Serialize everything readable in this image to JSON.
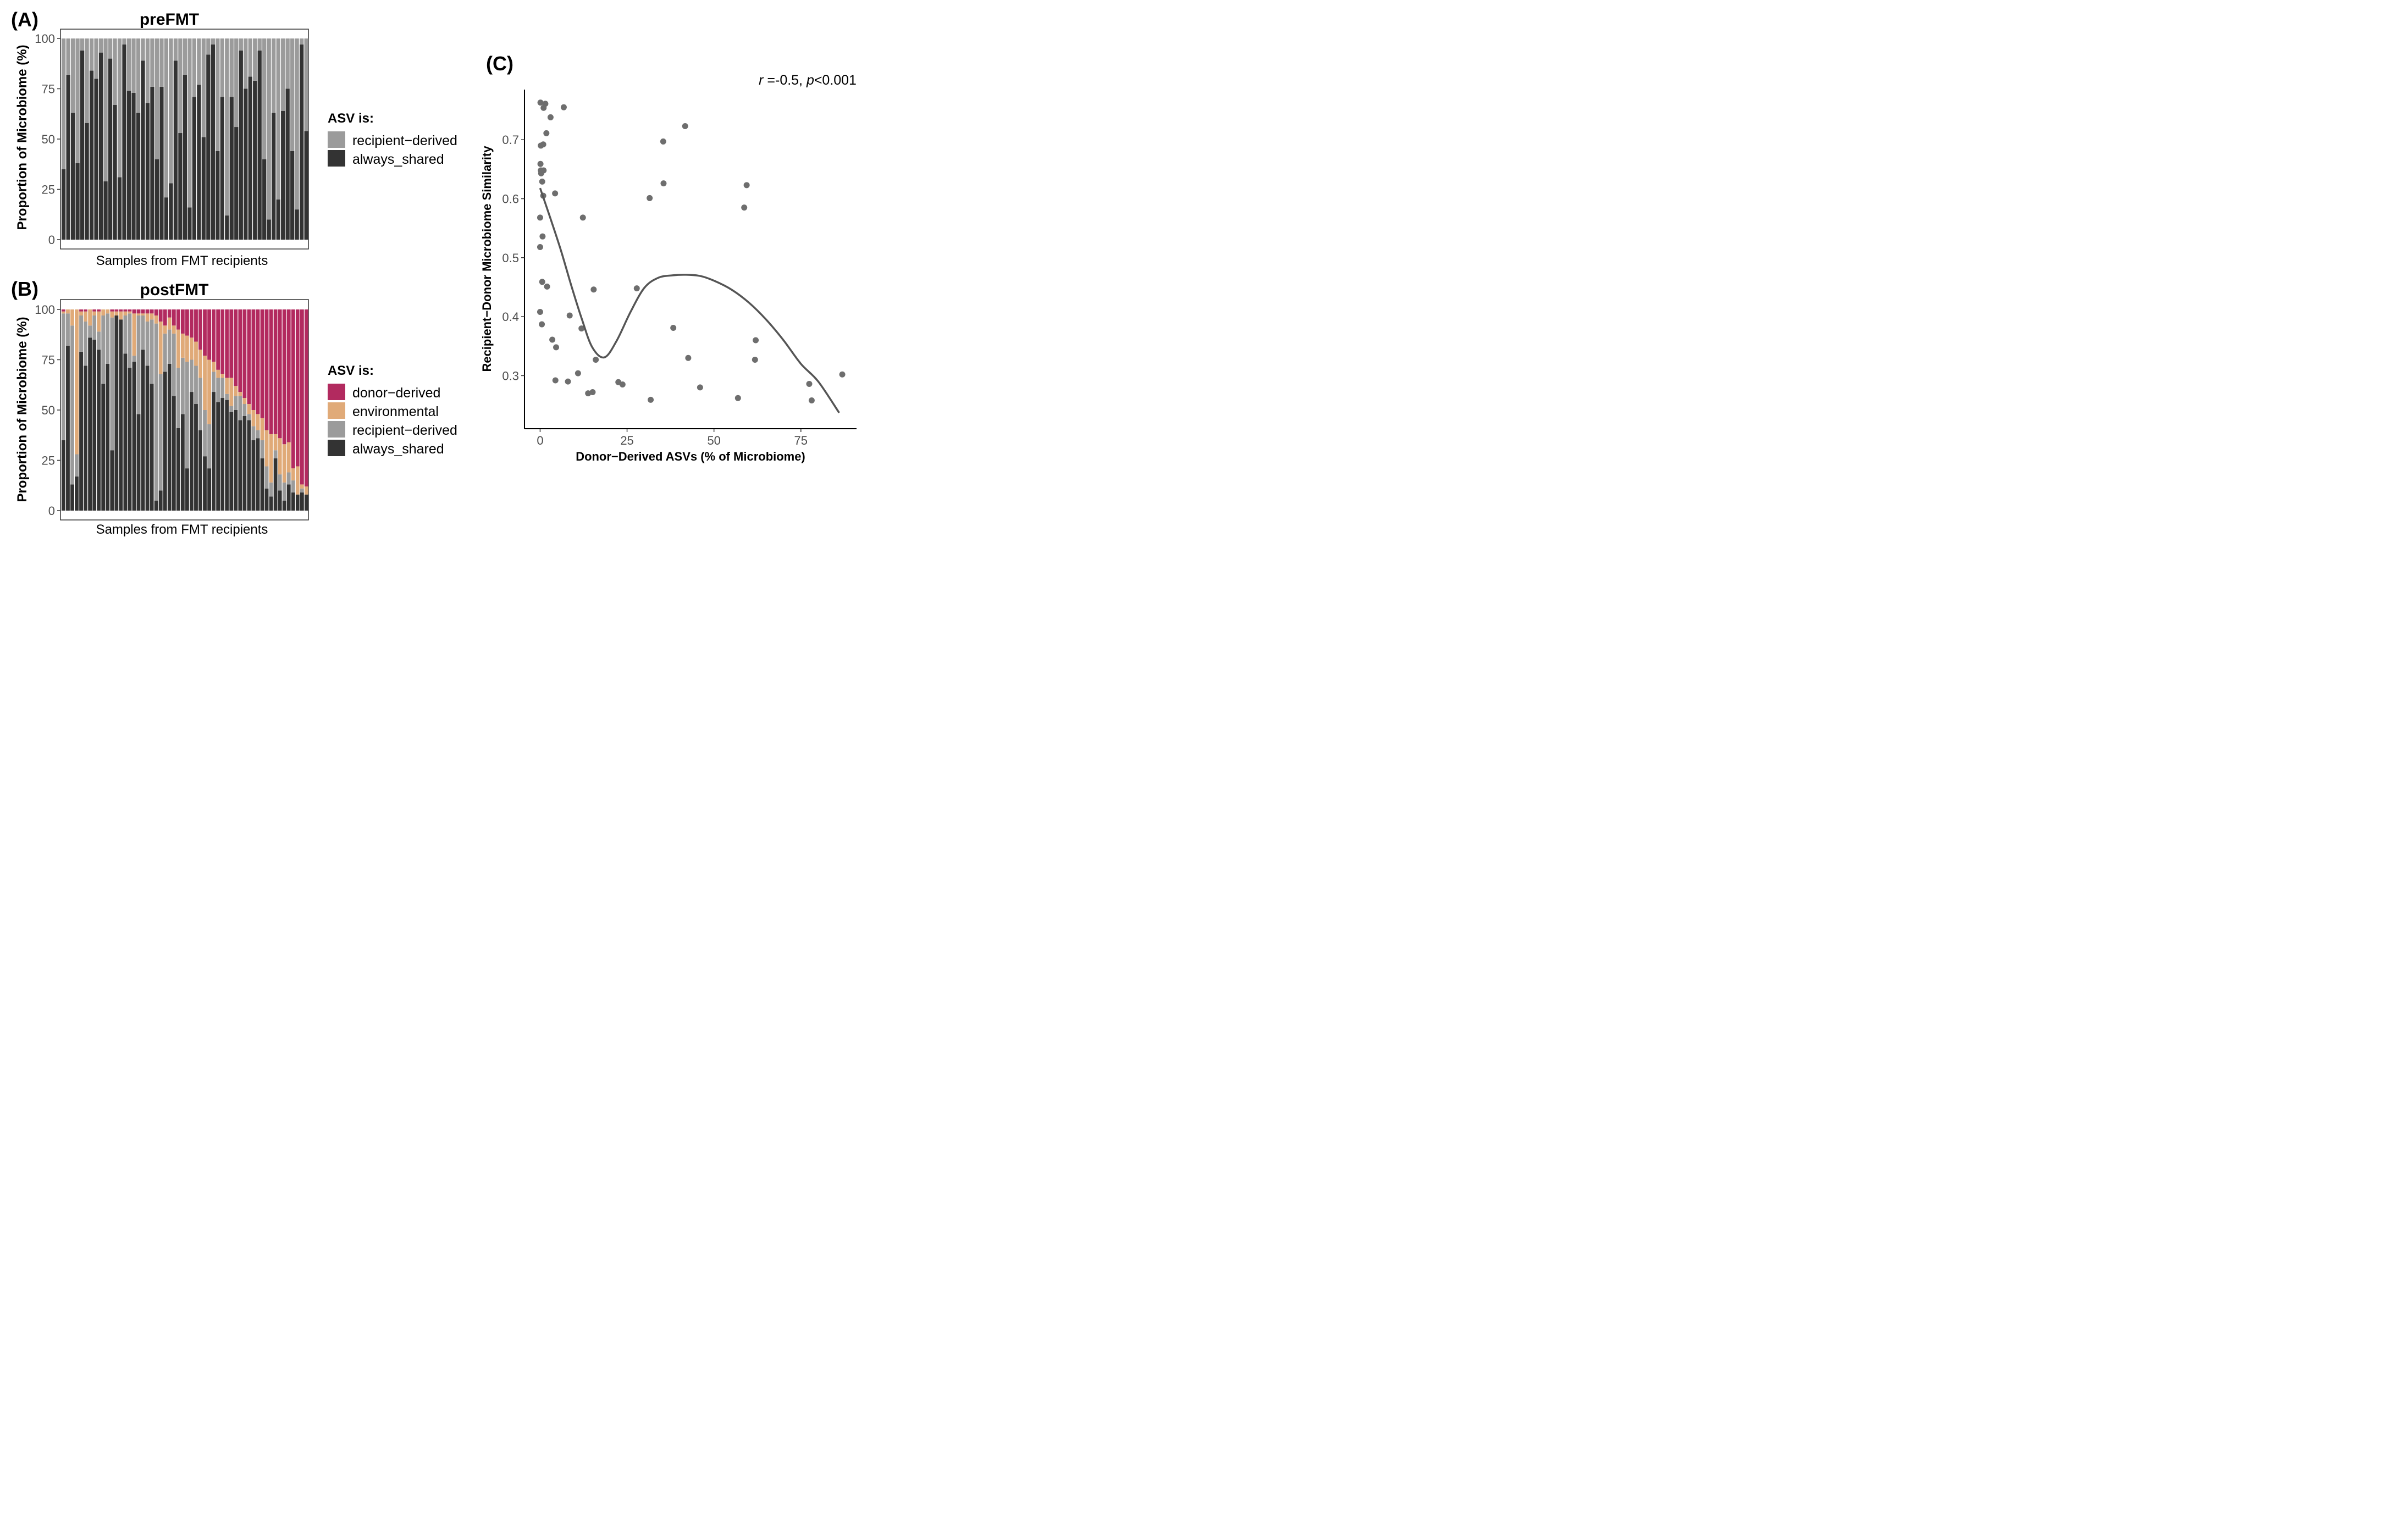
{
  "colors": {
    "donor": "#b22a5f",
    "environmental": "#e0aa78",
    "recipient": "#9b9b9b",
    "shared": "#333333",
    "point": "#6e6e6e",
    "curve": "#555555"
  },
  "chart_data": [
    {
      "panel": "(A)",
      "type": "bar",
      "stacked": true,
      "title": "preFMT",
      "xlabel": "Samples from FMT recipients",
      "ylabel": "Proportion of Microbiome (%)",
      "ylim": [
        0,
        100
      ],
      "yticks": [
        "0",
        "25",
        "50",
        "75",
        "100"
      ],
      "legend_title": "ASV is:",
      "legend_position": "right",
      "legend": [
        {
          "label": "recipient−derived",
          "key": "recipient"
        },
        {
          "label": "always_shared",
          "key": "shared"
        }
      ],
      "series_order": [
        "shared",
        "recipient"
      ],
      "samples": [
        {
          "shared": 35
        },
        {
          "shared": 82
        },
        {
          "shared": 63
        },
        {
          "shared": 38
        },
        {
          "shared": 94
        },
        {
          "shared": 58
        },
        {
          "shared": 84
        },
        {
          "shared": 80
        },
        {
          "shared": 93
        },
        {
          "shared": 29
        },
        {
          "shared": 90
        },
        {
          "shared": 67
        },
        {
          "shared": 31
        },
        {
          "shared": 97
        },
        {
          "shared": 74
        },
        {
          "shared": 73
        },
        {
          "shared": 63
        },
        {
          "shared": 89
        },
        {
          "shared": 68
        },
        {
          "shared": 76
        },
        {
          "shared": 40
        },
        {
          "shared": 76
        },
        {
          "shared": 21
        },
        {
          "shared": 28
        },
        {
          "shared": 89
        },
        {
          "shared": 53
        },
        {
          "shared": 82
        },
        {
          "shared": 16
        },
        {
          "shared": 71
        },
        {
          "shared": 77
        },
        {
          "shared": 51
        },
        {
          "shared": 92
        },
        {
          "shared": 97
        },
        {
          "shared": 44
        },
        {
          "shared": 71
        },
        {
          "shared": 12
        },
        {
          "shared": 71
        },
        {
          "shared": 56
        },
        {
          "shared": 94
        },
        {
          "shared": 75
        },
        {
          "shared": 81
        },
        {
          "shared": 79
        },
        {
          "shared": 94
        },
        {
          "shared": 40
        },
        {
          "shared": 10
        },
        {
          "shared": 63
        },
        {
          "shared": 20
        },
        {
          "shared": 64
        },
        {
          "shared": 75
        },
        {
          "shared": 44
        },
        {
          "shared": 15
        },
        {
          "shared": 97
        },
        {
          "shared": 54
        }
      ]
    },
    {
      "panel": "(B)",
      "type": "bar",
      "stacked": true,
      "title": "postFMT",
      "xlabel": "Samples from FMT recipients",
      "ylabel": "Proportion of Microbiome (%)",
      "ylim": [
        0,
        100
      ],
      "yticks": [
        "0",
        "25",
        "50",
        "75",
        "100"
      ],
      "legend_title": "ASV is:",
      "legend_position": "right",
      "legend": [
        {
          "label": "donor−derived",
          "key": "donor"
        },
        {
          "label": "environmental",
          "key": "environmental"
        },
        {
          "label": "recipient−derived",
          "key": "recipient"
        },
        {
          "label": "always_shared",
          "key": "shared"
        }
      ],
      "series_order": [
        "shared",
        "recipient",
        "environmental",
        "donor"
      ],
      "samples": [
        {
          "shared": 35,
          "recipient": 63,
          "environmental": 1,
          "donor": 1
        },
        {
          "shared": 82,
          "recipient": 16,
          "environmental": 2,
          "donor": 0
        },
        {
          "shared": 13,
          "recipient": 79,
          "environmental": 8,
          "donor": 0
        },
        {
          "shared": 17,
          "recipient": 11,
          "environmental": 72,
          "donor": 0
        },
        {
          "shared": 79,
          "recipient": 18,
          "environmental": 2,
          "donor": 1
        },
        {
          "shared": 72,
          "recipient": 22,
          "environmental": 5,
          "donor": 1
        },
        {
          "shared": 86,
          "recipient": 6,
          "environmental": 8,
          "donor": 0
        },
        {
          "shared": 85,
          "recipient": 12,
          "environmental": 2,
          "donor": 1
        },
        {
          "shared": 80,
          "recipient": 9,
          "environmental": 10,
          "donor": 1
        },
        {
          "shared": 63,
          "recipient": 34,
          "environmental": 3,
          "donor": 0
        },
        {
          "shared": 73,
          "recipient": 25,
          "environmental": 2,
          "donor": 0
        },
        {
          "shared": 30,
          "recipient": 66,
          "environmental": 3,
          "donor": 1
        },
        {
          "shared": 97,
          "recipient": 0,
          "environmental": 2,
          "donor": 1
        },
        {
          "shared": 95,
          "recipient": 0,
          "environmental": 4,
          "donor": 1
        },
        {
          "shared": 78,
          "recipient": 19,
          "environmental": 2,
          "donor": 1
        },
        {
          "shared": 71,
          "recipient": 27,
          "environmental": 1,
          "donor": 1
        },
        {
          "shared": 74,
          "recipient": 3,
          "environmental": 21,
          "donor": 2
        },
        {
          "shared": 48,
          "recipient": 49,
          "environmental": 1,
          "donor": 2
        },
        {
          "shared": 80,
          "recipient": 17,
          "environmental": 1,
          "donor": 2
        },
        {
          "shared": 72,
          "recipient": 22,
          "environmental": 4,
          "donor": 2
        },
        {
          "shared": 63,
          "recipient": 32,
          "environmental": 3,
          "donor": 2
        },
        {
          "shared": 5,
          "recipient": 88,
          "environmental": 4,
          "donor": 3
        },
        {
          "shared": 10,
          "recipient": 58,
          "environmental": 26,
          "donor": 6
        },
        {
          "shared": 69,
          "recipient": 19,
          "environmental": 4,
          "donor": 8
        },
        {
          "shared": 73,
          "recipient": 17,
          "environmental": 6,
          "donor": 4
        },
        {
          "shared": 57,
          "recipient": 31,
          "environmental": 4,
          "donor": 8
        },
        {
          "shared": 41,
          "recipient": 30,
          "environmental": 19,
          "donor": 10
        },
        {
          "shared": 48,
          "recipient": 28,
          "environmental": 12,
          "donor": 12
        },
        {
          "shared": 21,
          "recipient": 53,
          "environmental": 13,
          "donor": 13
        },
        {
          "shared": 59,
          "recipient": 16,
          "environmental": 11,
          "donor": 14
        },
        {
          "shared": 53,
          "recipient": 19,
          "environmental": 12,
          "donor": 16
        },
        {
          "shared": 40,
          "recipient": 26,
          "environmental": 14,
          "donor": 20
        },
        {
          "shared": 27,
          "recipient": 23,
          "environmental": 27,
          "donor": 23
        },
        {
          "shared": 21,
          "recipient": 22,
          "environmental": 32,
          "donor": 25
        },
        {
          "shared": 59,
          "recipient": 10,
          "environmental": 5,
          "donor": 26
        },
        {
          "shared": 54,
          "recipient": 12,
          "environmental": 4,
          "donor": 30
        },
        {
          "shared": 56,
          "recipient": 10,
          "environmental": 2,
          "donor": 32
        },
        {
          "shared": 55,
          "recipient": 3,
          "environmental": 8,
          "donor": 34
        },
        {
          "shared": 49,
          "recipient": 3,
          "environmental": 14,
          "donor": 34
        },
        {
          "shared": 50,
          "recipient": 7,
          "environmental": 5,
          "donor": 38
        },
        {
          "shared": 45,
          "recipient": 12,
          "environmental": 2,
          "donor": 41
        },
        {
          "shared": 47,
          "recipient": 6,
          "environmental": 3,
          "donor": 44
        },
        {
          "shared": 45,
          "recipient": 3,
          "environmental": 5,
          "donor": 47
        },
        {
          "shared": 35,
          "recipient": 7,
          "environmental": 8,
          "donor": 50
        },
        {
          "shared": 36,
          "recipient": 4,
          "environmental": 8,
          "donor": 52
        },
        {
          "shared": 26,
          "recipient": 9,
          "environmental": 11,
          "donor": 54
        },
        {
          "shared": 11,
          "recipient": 11,
          "environmental": 18,
          "donor": 60
        },
        {
          "shared": 7,
          "recipient": 7,
          "environmental": 24,
          "donor": 62
        },
        {
          "shared": 26,
          "recipient": 4,
          "environmental": 8,
          "donor": 62
        },
        {
          "shared": 10,
          "recipient": 8,
          "environmental": 18,
          "donor": 64
        },
        {
          "shared": 5,
          "recipient": 9,
          "environmental": 19,
          "donor": 67
        },
        {
          "shared": 13,
          "recipient": 6,
          "environmental": 15,
          "donor": 66
        },
        {
          "shared": 9,
          "recipient": 6,
          "environmental": 6,
          "donor": 79
        },
        {
          "shared": 8,
          "recipient": 0,
          "environmental": 14,
          "donor": 78
        },
        {
          "shared": 9,
          "recipient": 2,
          "environmental": 2,
          "donor": 87
        },
        {
          "shared": 8,
          "recipient": 0,
          "environmental": 4,
          "donor": 88
        }
      ]
    },
    {
      "panel": "(C)",
      "type": "scatter",
      "xlabel": "Donor−Derived ASVs (% of Microbiome)",
      "ylabel": "Recipient−Donor Microbiome Similarity",
      "xlim": [
        -4.5,
        91
      ],
      "ylim": [
        0.21,
        0.785
      ],
      "xticks": [
        "0",
        "25",
        "50",
        "75"
      ],
      "yticks": [
        "0.3",
        "0.4",
        "0.5",
        "0.6",
        "0.7"
      ],
      "annotation": {
        "r_symbol": "r",
        "r_text": " =-0.5, ",
        "p_symbol": "p",
        "p_text": "<0.001"
      },
      "points": [
        {
          "x": 0.1,
          "y": 0.763
        },
        {
          "x": 1.5,
          "y": 0.761
        },
        {
          "x": 1.0,
          "y": 0.754
        },
        {
          "x": 6.8,
          "y": 0.755
        },
        {
          "x": 3.0,
          "y": 0.738
        },
        {
          "x": 1.8,
          "y": 0.711
        },
        {
          "x": 0.2,
          "y": 0.69
        },
        {
          "x": 0.9,
          "y": 0.692
        },
        {
          "x": 0.1,
          "y": 0.659
        },
        {
          "x": 0.2,
          "y": 0.648
        },
        {
          "x": 1.0,
          "y": 0.648
        },
        {
          "x": 0.3,
          "y": 0.643
        },
        {
          "x": 0.6,
          "y": 0.629
        },
        {
          "x": 0.9,
          "y": 0.605
        },
        {
          "x": 4.3,
          "y": 0.609
        },
        {
          "x": 0.0,
          "y": 0.568
        },
        {
          "x": 0.7,
          "y": 0.536
        },
        {
          "x": 0.0,
          "y": 0.518
        },
        {
          "x": 0.6,
          "y": 0.459
        },
        {
          "x": 2.0,
          "y": 0.451
        },
        {
          "x": 0.0,
          "y": 0.408
        },
        {
          "x": 0.5,
          "y": 0.387
        },
        {
          "x": 3.5,
          "y": 0.361
        },
        {
          "x": 4.6,
          "y": 0.348
        },
        {
          "x": 4.4,
          "y": 0.292
        },
        {
          "x": 8.5,
          "y": 0.402
        },
        {
          "x": 8.0,
          "y": 0.29
        },
        {
          "x": 10.9,
          "y": 0.304
        },
        {
          "x": 12.3,
          "y": 0.568
        },
        {
          "x": 11.9,
          "y": 0.38
        },
        {
          "x": 15.4,
          "y": 0.446
        },
        {
          "x": 16.0,
          "y": 0.327
        },
        {
          "x": 13.8,
          "y": 0.27
        },
        {
          "x": 15.1,
          "y": 0.272
        },
        {
          "x": 22.5,
          "y": 0.289
        },
        {
          "x": 23.7,
          "y": 0.285
        },
        {
          "x": 27.8,
          "y": 0.448
        },
        {
          "x": 31.5,
          "y": 0.601
        },
        {
          "x": 31.8,
          "y": 0.259
        },
        {
          "x": 35.4,
          "y": 0.697
        },
        {
          "x": 35.5,
          "y": 0.626
        },
        {
          "x": 38.3,
          "y": 0.381
        },
        {
          "x": 41.7,
          "y": 0.723
        },
        {
          "x": 42.6,
          "y": 0.33
        },
        {
          "x": 46.0,
          "y": 0.28
        },
        {
          "x": 56.9,
          "y": 0.262
        },
        {
          "x": 58.7,
          "y": 0.585
        },
        {
          "x": 59.4,
          "y": 0.623
        },
        {
          "x": 61.8,
          "y": 0.327
        },
        {
          "x": 62.0,
          "y": 0.36
        },
        {
          "x": 77.4,
          "y": 0.286
        },
        {
          "x": 78.1,
          "y": 0.258
        },
        {
          "x": 86.9,
          "y": 0.302
        }
      ],
      "trend": [
        [
          0,
          0.618
        ],
        [
          3,
          0.566
        ],
        [
          6,
          0.512
        ],
        [
          9,
          0.452
        ],
        [
          12,
          0.396
        ],
        [
          15,
          0.348
        ],
        [
          18.5,
          0.331
        ],
        [
          22,
          0.359
        ],
        [
          26,
          0.408
        ],
        [
          30,
          0.449
        ],
        [
          34,
          0.466
        ],
        [
          38,
          0.47
        ],
        [
          42,
          0.471
        ],
        [
          46,
          0.469
        ],
        [
          50,
          0.461
        ],
        [
          55,
          0.446
        ],
        [
          60,
          0.424
        ],
        [
          65,
          0.395
        ],
        [
          70,
          0.36
        ],
        [
          75,
          0.32
        ],
        [
          80,
          0.29
        ],
        [
          86,
          0.237
        ]
      ]
    }
  ]
}
